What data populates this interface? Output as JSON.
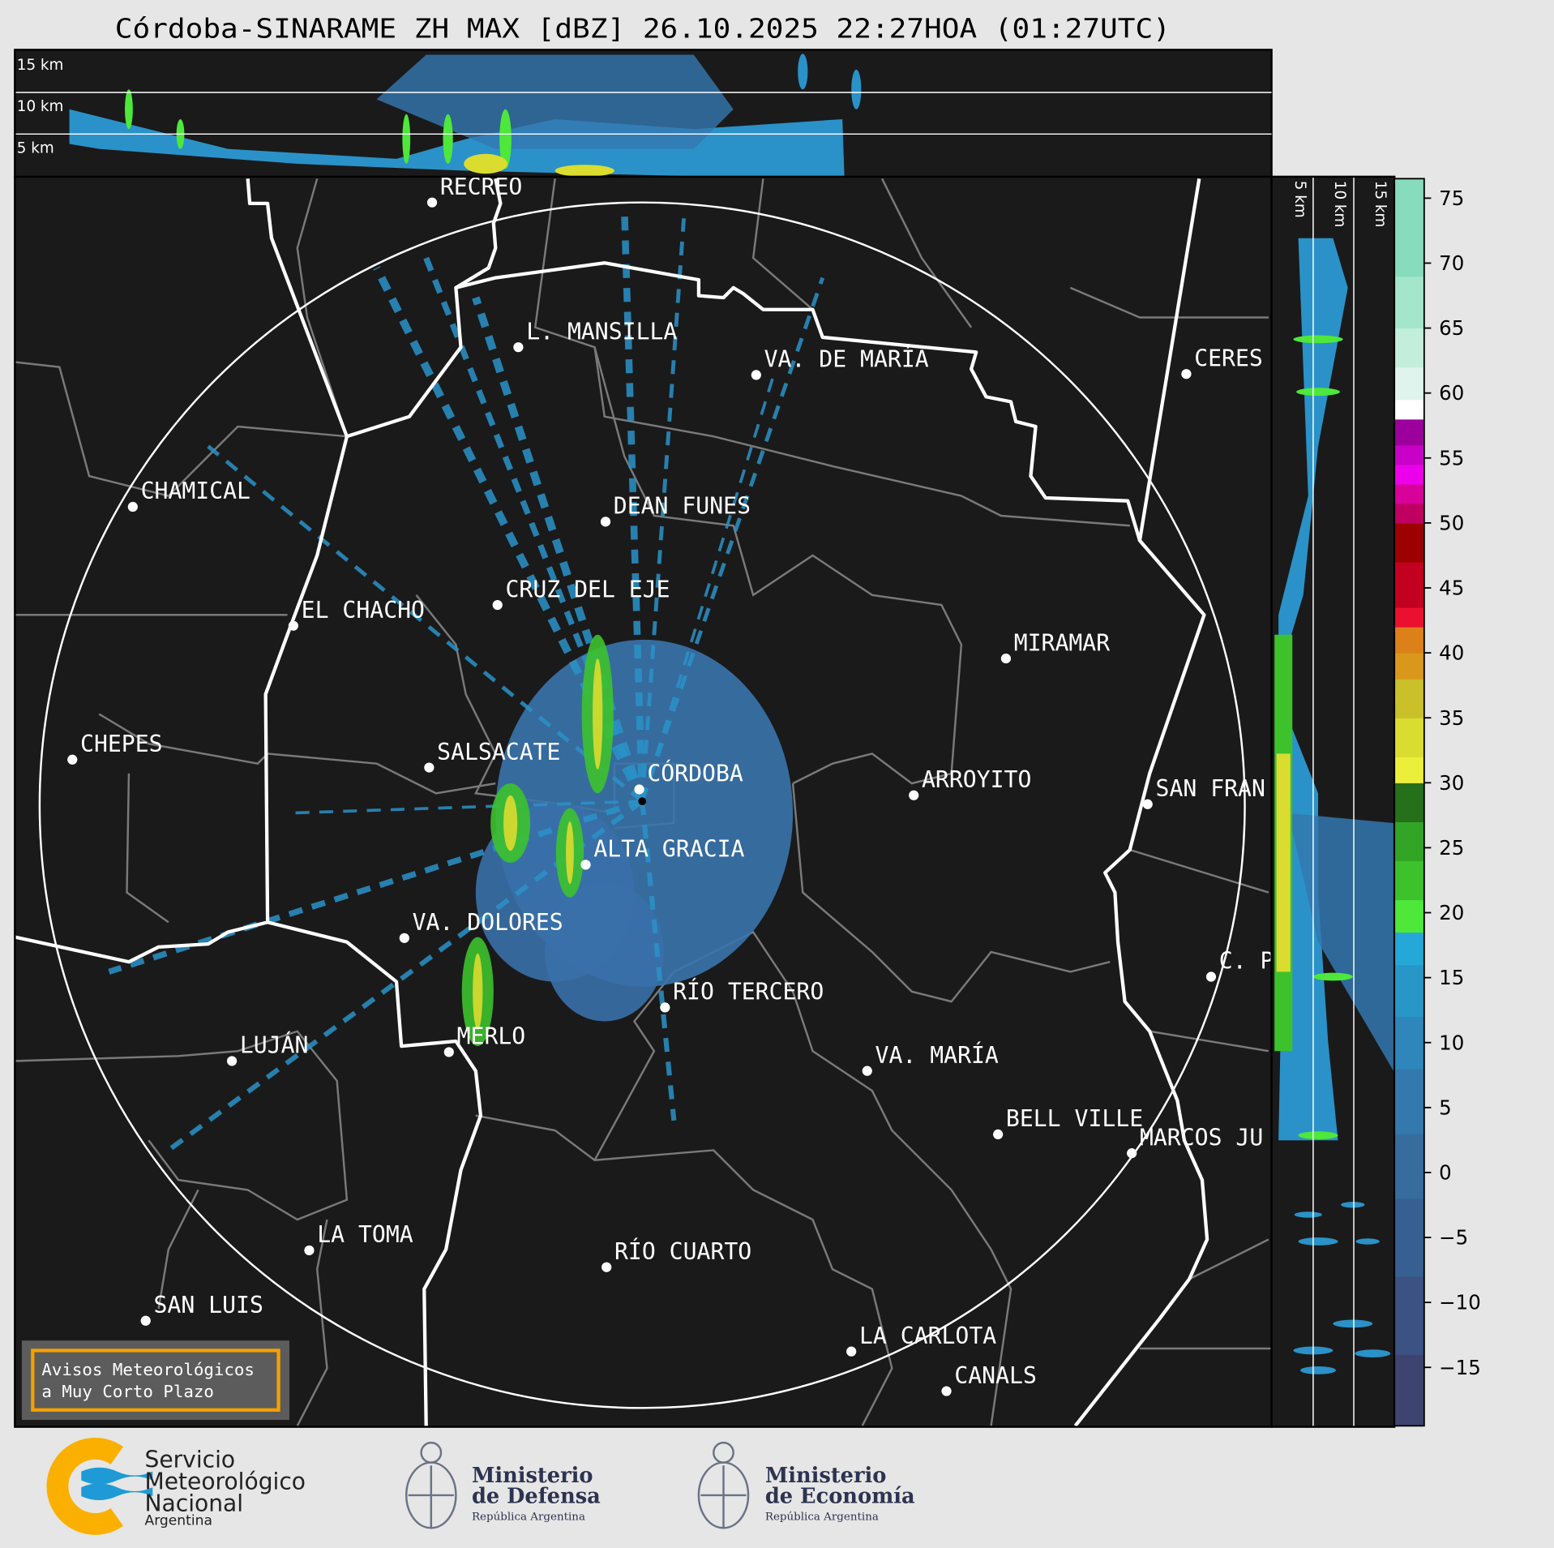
{
  "title": "Córdoba-SINARAME ZH MAX [dBZ] 26.10.2025 22:27HOA (01:27UTC)",
  "top_section": {
    "height_labels": [
      "15 km",
      "10 km",
      "5 km"
    ]
  },
  "right_section": {
    "height_labels": [
      "5 km",
      "10 km",
      "15 km"
    ]
  },
  "colorbar": {
    "unit": "dBZ",
    "range": [
      -19.5,
      76.5
    ],
    "ticks": [
      {
        "value": 75,
        "label": "75"
      },
      {
        "value": 70,
        "label": "70"
      },
      {
        "value": 65,
        "label": "65"
      },
      {
        "value": 60,
        "label": "60"
      },
      {
        "value": 55,
        "label": "55"
      },
      {
        "value": 50,
        "label": "50"
      },
      {
        "value": 45,
        "label": "45"
      },
      {
        "value": 40,
        "label": "40"
      },
      {
        "value": 35,
        "label": "35"
      },
      {
        "value": 30,
        "label": "30"
      },
      {
        "value": 25,
        "label": "25"
      },
      {
        "value": 20,
        "label": "20"
      },
      {
        "value": 15,
        "label": "15"
      },
      {
        "value": 10,
        "label": "10"
      },
      {
        "value": 5,
        "label": "5"
      },
      {
        "value": 0,
        "label": "0"
      },
      {
        "value": -5,
        "label": "−5"
      },
      {
        "value": -10,
        "label": "−10"
      },
      {
        "value": -15,
        "label": "−15"
      }
    ],
    "bands": [
      {
        "from": -19.5,
        "to": -14,
        "color": "#3d4470"
      },
      {
        "from": -14,
        "to": -8,
        "color": "#3b5282"
      },
      {
        "from": -8,
        "to": -2,
        "color": "#385f91"
      },
      {
        "from": -2,
        "to": 3,
        "color": "#366c9e"
      },
      {
        "from": 3,
        "to": 8,
        "color": "#3479ad"
      },
      {
        "from": 8,
        "to": 12,
        "color": "#2e86ba"
      },
      {
        "from": 12,
        "to": 16,
        "color": "#2896c7"
      },
      {
        "from": 16,
        "to": 18.5,
        "color": "#25a8d8"
      },
      {
        "from": 18.5,
        "to": 21,
        "color": "#4de83a"
      },
      {
        "from": 21,
        "to": 24,
        "color": "#3dc22c"
      },
      {
        "from": 24,
        "to": 27,
        "color": "#33a526"
      },
      {
        "from": 27,
        "to": 30,
        "color": "#26701c"
      },
      {
        "from": 30,
        "to": 32,
        "color": "#ecef3a"
      },
      {
        "from": 32,
        "to": 35,
        "color": "#dbdc30"
      },
      {
        "from": 35,
        "to": 38,
        "color": "#c9c02a"
      },
      {
        "from": 38,
        "to": 40,
        "color": "#d9981c"
      },
      {
        "from": 40,
        "to": 42,
        "color": "#dc801a"
      },
      {
        "from": 42,
        "to": 43.5,
        "color": "#ec1030"
      },
      {
        "from": 43.5,
        "to": 47,
        "color": "#c30020"
      },
      {
        "from": 47,
        "to": 50,
        "color": "#9c0000"
      },
      {
        "from": 50,
        "to": 51.5,
        "color": "#c00060"
      },
      {
        "from": 51.5,
        "to": 53,
        "color": "#d8009a"
      },
      {
        "from": 53,
        "to": 54.5,
        "color": "#ec00ec"
      },
      {
        "from": 54.5,
        "to": 56,
        "color": "#c800c8"
      },
      {
        "from": 56,
        "to": 58,
        "color": "#9c009c"
      },
      {
        "from": 58,
        "to": 59.5,
        "color": "#ffffff"
      },
      {
        "from": 59.5,
        "to": 62,
        "color": "#def4ec"
      },
      {
        "from": 62,
        "to": 65,
        "color": "#c4eedc"
      },
      {
        "from": 65,
        "to": 69,
        "color": "#a4e6cc"
      },
      {
        "from": 69,
        "to": 76.5,
        "color": "#86dcbc"
      }
    ]
  },
  "cities": [
    {
      "name": "RECREO"
    },
    {
      "name": "L. MANSILLA"
    },
    {
      "name": "VA. DE MARÍA"
    },
    {
      "name": "CERES"
    },
    {
      "name": "CHAMICAL"
    },
    {
      "name": "DEAN FUNES"
    },
    {
      "name": "CRUZ DEL EJE"
    },
    {
      "name": "EL CHACHO"
    },
    {
      "name": "MIRAMAR"
    },
    {
      "name": "CHEPES"
    },
    {
      "name": "SALSACATE"
    },
    {
      "name": "CÓRDOBA"
    },
    {
      "name": "ARROYITO"
    },
    {
      "name": "SAN FRAN"
    },
    {
      "name": "ALTA GRACIA"
    },
    {
      "name": "VA. DOLORES"
    },
    {
      "name": "C. P"
    },
    {
      "name": "RÍO TERCERO"
    },
    {
      "name": "MERLO"
    },
    {
      "name": "LUJÁN"
    },
    {
      "name": "VA. MARÍA"
    },
    {
      "name": "BELL VILLE"
    },
    {
      "name": "MARCOS JU"
    },
    {
      "name": "LA TOMA"
    },
    {
      "name": "RÍO CUARTO"
    },
    {
      "name": "SAN LUIS"
    },
    {
      "name": "LA CARLOTA"
    },
    {
      "name": "CANALS"
    }
  ],
  "warning_box": {
    "line1": "Avisos Meteorológicos",
    "line2": "a Muy Corto Plazo",
    "border_color": "#f5a000"
  },
  "logos": {
    "smn": {
      "line1": "Servicio",
      "line2": "Meteorológico",
      "line3": "Nacional",
      "line4": "Argentina"
    },
    "defensa": {
      "line1": "Ministerio",
      "line2": "de Defensa",
      "line3": "República Argentina"
    },
    "economia": {
      "line1": "Ministerio",
      "line2": "de Economía",
      "line3": "República Argentina"
    }
  }
}
